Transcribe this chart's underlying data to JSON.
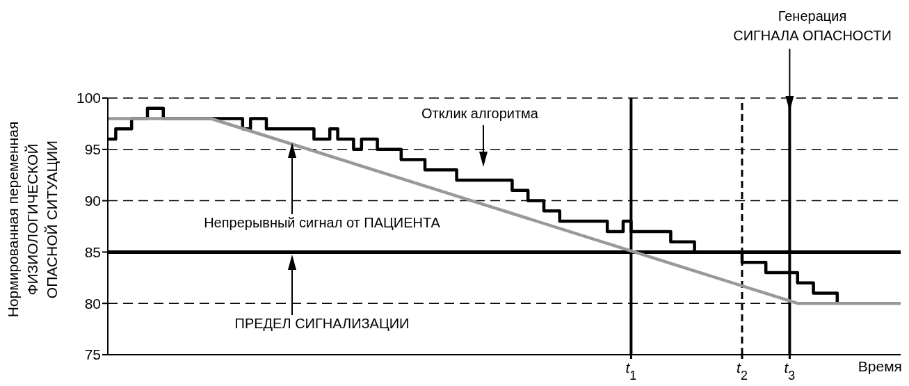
{
  "chart_data": {
    "type": "line",
    "xlabel": "Время",
    "ylabel": "Нормированная переменная\nФИЗИОЛОГИЧЕСКОЙ\nОПАСНОЙ СИТУАЦИИ",
    "categories": [
      null,
      null,
      null,
      null,
      null,
      null,
      null,
      null,
      null,
      null,
      null,
      null,
      null,
      null,
      null,
      null,
      null,
      null,
      null,
      null,
      null,
      null,
      null,
      null,
      null,
      null,
      null,
      null,
      null,
      null,
      null,
      null,
      null,
      null,
      null,
      null,
      null,
      null,
      null,
      null,
      null,
      null,
      null,
      null,
      null,
      null,
      null,
      null,
      null,
      null,
      null,
      null,
      null,
      null,
      null,
      null,
      null,
      null,
      null,
      null,
      null,
      null,
      null,
      null,
      null,
      null,
      "t$_{1}$",
      null,
      null,
      null,
      null,
      null,
      null,
      null,
      null,
      null,
      null,
      null,
      null,
      null,
      "t$_{2}$",
      null,
      null,
      null,
      null,
      null,
      "t$_{3}$",
      null,
      null,
      null,
      null,
      null,
      null,
      null,
      null,
      null,
      null,
      null,
      null,
      null,
      null
    ],
    "ylim": [
      75,
      100
    ],
    "yticks": [
      75,
      80,
      85,
      90,
      95,
      100
    ],
    "grid": "y",
    "marker": "none",
    "ref_lines": [
      {
        "axis": "y",
        "value": 85,
        "color": "#000000",
        "line_style": "solid"
      },
      {
        "axis": "x",
        "value": "t$_{1}$",
        "color": "#000000",
        "line_style": "solid"
      },
      {
        "axis": "x",
        "value": "t$_{2}$",
        "color": "#000000",
        "line_style": "dashed"
      },
      {
        "axis": "x",
        "value": "t$_{3}$",
        "color": "#000000",
        "line_style": "solid"
      }
    ],
    "annotations": [
      "Отклик алгоритма",
      "Непрерывный сигнал от ПАЦИЕНТА",
      "ПРЕДЕЛ СИГНАЛИЗАЦИИ",
      "Генерация\nСИГНАЛА ОПАСНОСТИ"
    ],
    "series": [
      {
        "type": "step",
        "color": "#000000",
        "values": [
          96,
          97,
          null,
          98,
          null,
          99,
          null,
          98,
          null,
          null,
          null,
          null,
          null,
          null,
          null,
          null,
          null,
          97,
          98,
          null,
          97,
          null,
          null,
          null,
          null,
          null,
          96,
          null,
          97,
          96,
          null,
          95,
          96,
          null,
          95,
          null,
          null,
          94,
          null,
          null,
          93,
          null,
          null,
          null,
          92,
          null,
          null,
          null,
          null,
          null,
          null,
          91,
          null,
          90,
          null,
          89,
          null,
          88,
          null,
          null,
          null,
          null,
          null,
          87,
          null,
          88,
          87,
          null,
          null,
          null,
          null,
          86,
          null,
          null,
          85,
          null,
          null,
          null,
          null,
          null,
          84,
          null,
          null,
          83,
          null,
          null,
          null,
          82,
          null,
          81,
          null,
          null,
          80,
          null,
          null,
          null,
          null,
          null,
          null,
          null,
          null
        ]
      },
      {
        "type": "line",
        "color": "#999999",
        "values": [
          98,
          null,
          null,
          null,
          null,
          null,
          null,
          null,
          null,
          null,
          null,
          null,
          null,
          98,
          null,
          null,
          null,
          null,
          null,
          null,
          null,
          null,
          null,
          null,
          null,
          null,
          null,
          null,
          null,
          null,
          null,
          null,
          null,
          null,
          null,
          null,
          null,
          null,
          null,
          null,
          null,
          null,
          null,
          null,
          null,
          null,
          null,
          null,
          null,
          null,
          null,
          null,
          null,
          null,
          null,
          null,
          null,
          null,
          null,
          null,
          null,
          null,
          null,
          null,
          null,
          null,
          null,
          null,
          null,
          null,
          null,
          null,
          null,
          null,
          null,
          null,
          null,
          null,
          null,
          null,
          null,
          null,
          null,
          null,
          null,
          null,
          null,
          80,
          null,
          null,
          null,
          null,
          null,
          null,
          null,
          null,
          null,
          null,
          null,
          null,
          80
        ]
      }
    ]
  }
}
